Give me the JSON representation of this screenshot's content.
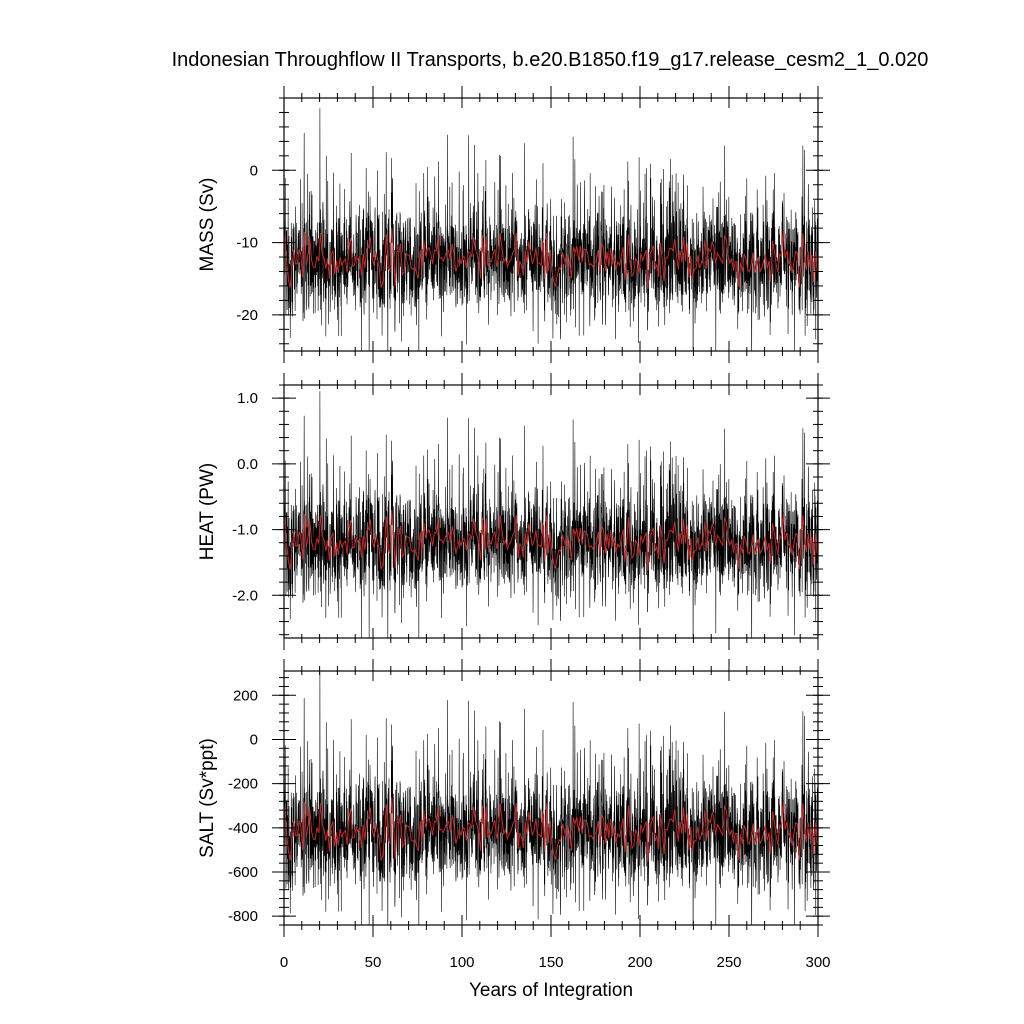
{
  "chart_data": {
    "type": "line",
    "title": "Indonesian Throughflow II Transports, b.e20.B1850.f19_g17.release_cesm2_1_0.020",
    "xlabel": "Years of Integration",
    "xlim": [
      0,
      300
    ],
    "xticks": [
      0,
      50,
      100,
      150,
      200,
      250,
      300
    ],
    "xtick_labels": [
      "0",
      "50",
      "100",
      "150",
      "200",
      "250",
      "300"
    ],
    "panels": [
      {
        "id": "mass",
        "ylabel": "MASS (Sv)",
        "ylim": [
          -25,
          10
        ],
        "yticks": [
          0,
          -10,
          -20
        ],
        "ytick_labels": [
          "0",
          "-10",
          "-20"
        ],
        "mean": -12.5,
        "spread": 3.2,
        "series": [
          {
            "name": "monthly transport",
            "color": "#000000"
          },
          {
            "name": "annual mean",
            "color": "#c82828"
          }
        ]
      },
      {
        "id": "heat",
        "ylabel": "HEAT (PW)",
        "ylim": [
          -2.65,
          1.2
        ],
        "yticks": [
          1.0,
          0.0,
          -1.0,
          -2.0
        ],
        "ytick_labels": [
          "1.0",
          "0.0",
          "-1.0",
          "-2.0"
        ],
        "mean": -1.2,
        "spread": 0.35,
        "series": [
          {
            "name": "monthly transport",
            "color": "#000000"
          },
          {
            "name": "annual mean",
            "color": "#c82828"
          }
        ]
      },
      {
        "id": "salt",
        "ylabel": "SALT (Sv*ppt)",
        "ylim": [
          -840,
          310
        ],
        "yticks": [
          200,
          0,
          -200,
          -400,
          -600,
          -800
        ],
        "ytick_labels": [
          "200",
          "0",
          "-200",
          "-400",
          "-600",
          "-800"
        ],
        "mean": -420,
        "spread": 110,
        "series": [
          {
            "name": "monthly transport",
            "color": "#000000"
          },
          {
            "name": "annual mean",
            "color": "#c82828"
          }
        ]
      }
    ]
  }
}
